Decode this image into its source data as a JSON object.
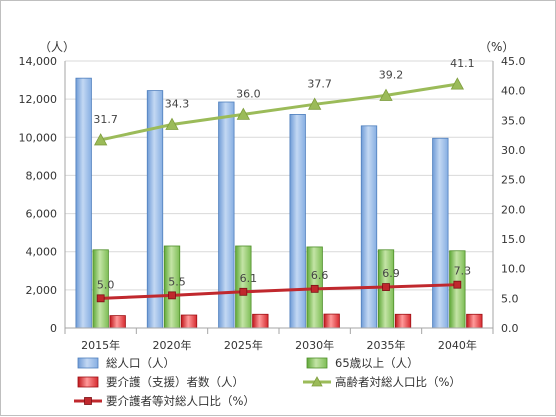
{
  "chart_data": {
    "type": "bar",
    "categories": [
      "2015年",
      "2020年",
      "2025年",
      "2030年",
      "2035年",
      "2040年"
    ],
    "y_left": {
      "unit_label": "（人）",
      "min": 0,
      "max": 14000,
      "step": 2000,
      "ticks": [
        "0",
        "2,000",
        "4,000",
        "6,000",
        "8,000",
        "10,000",
        "12,000",
        "14,000"
      ]
    },
    "y_right": {
      "unit_label": "（%）",
      "min": 0,
      "max": 45,
      "step": 5,
      "ticks": [
        "0.0",
        "5.0",
        "10.0",
        "15.0",
        "20.0",
        "25.0",
        "30.0",
        "35.0",
        "40.0",
        "45.0"
      ]
    },
    "series": [
      {
        "name": "総人口（人）",
        "type": "bar",
        "axis": "left",
        "color": "#9dbfe8",
        "values": [
          13100,
          12450,
          11850,
          11200,
          10600,
          9950
        ]
      },
      {
        "name": "65歳以上（人）",
        "type": "bar",
        "axis": "left",
        "color": "#92c86a",
        "values": [
          4100,
          4300,
          4300,
          4250,
          4100,
          4050
        ]
      },
      {
        "name": "要介護（支援）者数（人）",
        "type": "bar",
        "axis": "left",
        "color": "#e03030",
        "values": [
          650,
          680,
          720,
          730,
          720,
          720
        ]
      },
      {
        "name": "高齢者対総人口比（%）",
        "type": "line",
        "axis": "right",
        "color": "#9bbb59",
        "marker": "triangle",
        "values": [
          31.7,
          34.3,
          36.0,
          37.7,
          39.2,
          41.1
        ],
        "labels": [
          "31.7",
          "34.3",
          "36.0",
          "37.7",
          "39.2",
          "41.1"
        ]
      },
      {
        "name": "要介護者等対総人口比（%）",
        "type": "line",
        "axis": "right",
        "color": "#c0282d",
        "marker": "square",
        "values": [
          5.0,
          5.5,
          6.1,
          6.6,
          6.9,
          7.3
        ],
        "labels": [
          "5.0",
          "5.5",
          "6.1",
          "6.6",
          "6.9",
          "7.3"
        ]
      }
    ],
    "grid": true,
    "legend_position": "bottom"
  }
}
